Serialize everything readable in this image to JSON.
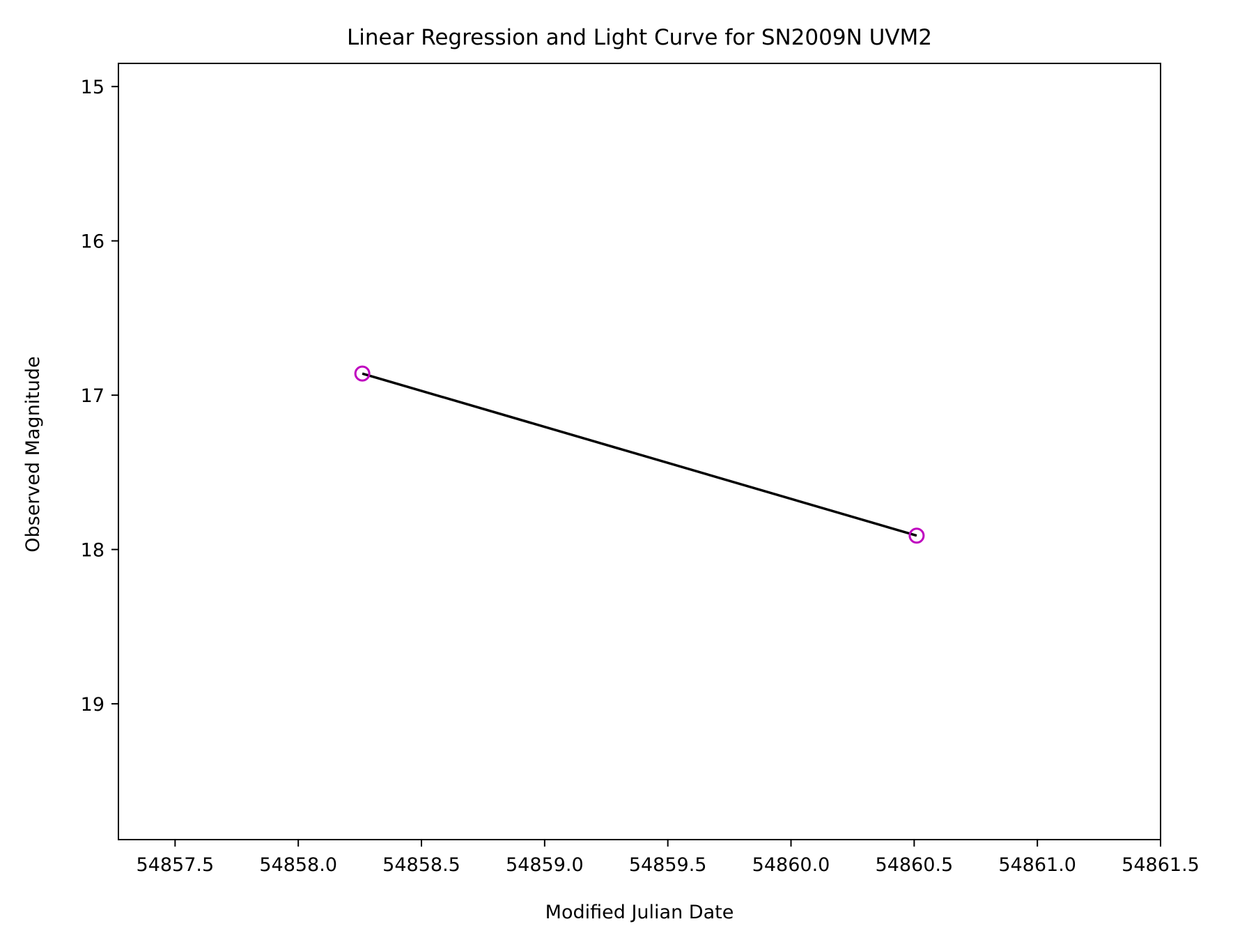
{
  "chart_data": {
    "type": "line",
    "title": "Linear Regression and Light Curve for SN2009N UVM2",
    "xlabel": "Modified Julian Date",
    "ylabel": "Observed Magnitude",
    "xlim": [
      54857.27,
      54861.5
    ],
    "ylim": [
      19.88,
      14.85
    ],
    "y_inverted": true,
    "x_ticks": [
      54857.5,
      54858.0,
      54858.5,
      54859.0,
      54859.5,
      54860.0,
      54860.5,
      54861.0,
      54861.5
    ],
    "x_tick_labels": [
      "54857.5",
      "54858.0",
      "54858.5",
      "54859.0",
      "54859.5",
      "54860.0",
      "54860.5",
      "54861.0",
      "54861.5"
    ],
    "y_ticks": [
      15,
      16,
      17,
      18,
      19
    ],
    "y_tick_labels": [
      "15",
      "16",
      "17",
      "18",
      "19"
    ],
    "grid": false,
    "series": [
      {
        "kind": "scatter",
        "marker": "open-circle",
        "color": "#bf00bf",
        "x": [
          54858.26,
          54860.51
        ],
        "y": [
          16.86,
          17.91
        ]
      },
      {
        "kind": "line",
        "color": "#000000",
        "x": [
          54858.26,
          54860.51
        ],
        "y": [
          16.86,
          17.91
        ]
      }
    ]
  }
}
